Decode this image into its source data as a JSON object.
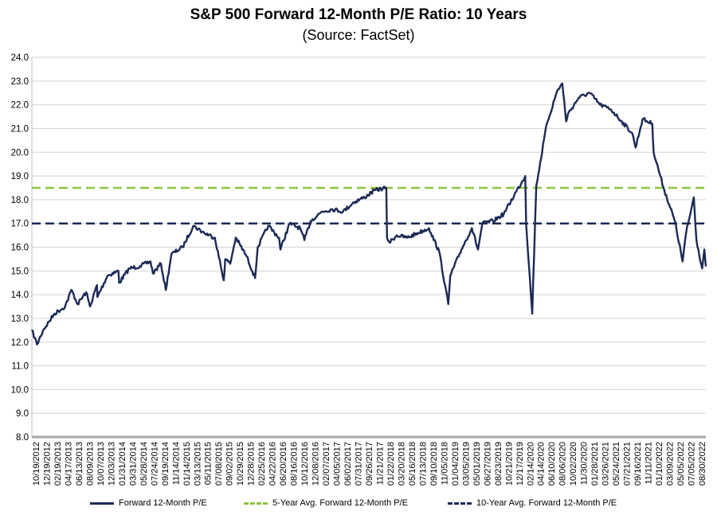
{
  "chart_data": {
    "type": "line",
    "title": "S&P 500 Forward 12-Month P/E Ratio: 10 Years",
    "subtitle": "(Source: FactSet)",
    "xlabel": "",
    "ylabel": "",
    "ylim": [
      8.0,
      24.0
    ],
    "y_ticks": [
      "8.0",
      "9.0",
      "10.0",
      "11.0",
      "12.0",
      "13.0",
      "14.0",
      "15.0",
      "16.0",
      "17.0",
      "18.0",
      "19.0",
      "20.0",
      "21.0",
      "22.0",
      "23.0",
      "24.0"
    ],
    "x_ticks": [
      "10/19/2012",
      "12/19/2012",
      "02/19/2013",
      "04/17/2013",
      "06/13/2013",
      "08/09/2013",
      "10/07/2013",
      "12/03/2013",
      "01/31/2014",
      "03/31/2014",
      "05/28/2014",
      "07/24/2014",
      "09/19/2014",
      "11/14/2014",
      "01/14/2015",
      "03/13/2015",
      "05/11/2015",
      "07/08/2015",
      "09/02/2015",
      "10/29/2015",
      "12/28/2015",
      "02/25/2016",
      "04/22/2016",
      "06/20/2016",
      "08/16/2016",
      "10/12/2016",
      "12/08/2016",
      "02/07/2017",
      "04/05/2017",
      "06/02/2017",
      "07/31/2017",
      "09/26/2017",
      "11/21/2017",
      "01/22/2018",
      "03/20/2018",
      "05/16/2018",
      "07/13/2018",
      "09/10/2018",
      "11/05/2018",
      "01/04/2019",
      "03/05/2019",
      "05/01/2019",
      "06/27/2019",
      "08/23/2019",
      "10/21/2019",
      "12/17/2019",
      "02/14/2020",
      "04/14/2020",
      "06/10/2020",
      "08/06/2020",
      "10/02/2020",
      "11/30/2020",
      "01/28/2021",
      "03/26/2021",
      "05/24/2021",
      "07/21/2021",
      "09/16/2021",
      "11/11/2021",
      "01/10/2022",
      "03/09/2022",
      "05/05/2022",
      "07/05/2022",
      "08/30/2022"
    ],
    "grid": true,
    "legend": "bottom",
    "series": [
      {
        "name": "Forward 12-Month P/E",
        "color": "#1b2a56",
        "style": "solid",
        "x": [
          "10/19/2012",
          "11/16/2012",
          "12/19/2012",
          "02/19/2013",
          "04/17/2013",
          "05/22/2013",
          "06/24/2013",
          "08/09/2013",
          "08/30/2013",
          "10/07/2013",
          "10/09/2013",
          "12/03/2013",
          "01/31/2014",
          "02/04/2014",
          "03/31/2014",
          "05/28/2014",
          "07/24/2014",
          "08/06/2014",
          "09/19/2014",
          "10/15/2014",
          "11/14/2014",
          "01/14/2015",
          "03/13/2015",
          "05/11/2015",
          "07/08/2015",
          "08/25/2015",
          "09/02/2015",
          "09/29/2015",
          "10/29/2015",
          "12/28/2015",
          "02/11/2016",
          "02/25/2016",
          "04/22/2016",
          "06/20/2016",
          "06/27/2016",
          "08/16/2016",
          "10/12/2016",
          "11/04/2016",
          "12/08/2016",
          "02/07/2017",
          "04/05/2017",
          "06/02/2017",
          "07/31/2017",
          "09/26/2017",
          "11/21/2017",
          "01/22/2018",
          "01/26/2018",
          "02/08/2018",
          "03/20/2018",
          "05/16/2018",
          "07/13/2018",
          "09/10/2018",
          "09/21/2018",
          "11/05/2018",
          "12/24/2018",
          "01/04/2019",
          "03/05/2019",
          "05/01/2019",
          "06/03/2019",
          "06/27/2019",
          "08/23/2019",
          "10/21/2019",
          "12/17/2019",
          "02/14/2020",
          "02/19/2020",
          "03/23/2020",
          "04/14/2020",
          "06/10/2020",
          "08/06/2020",
          "09/02/2020",
          "09/23/2020",
          "10/02/2020",
          "11/30/2020",
          "01/28/2021",
          "03/26/2021",
          "05/24/2021",
          "07/21/2021",
          "09/16/2021",
          "10/04/2021",
          "11/11/2021",
          "01/03/2022",
          "01/10/2022",
          "03/09/2022",
          "05/05/2022",
          "06/16/2022",
          "07/05/2022",
          "08/16/2022",
          "08/30/2022",
          "09/30/2022",
          "10/12/2022",
          "10/20/2022"
        ],
        "values": [
          12.5,
          11.9,
          12.5,
          13.2,
          13.5,
          14.2,
          13.6,
          14.1,
          13.5,
          14.4,
          13.9,
          14.8,
          15.0,
          14.5,
          15.1,
          15.2,
          15.4,
          14.9,
          15.3,
          14.2,
          15.7,
          16.0,
          16.9,
          16.6,
          16.4,
          14.6,
          15.5,
          15.3,
          16.4,
          15.6,
          14.7,
          16.0,
          16.9,
          16.4,
          15.9,
          17.0,
          16.8,
          16.3,
          17.1,
          17.5,
          17.6,
          17.5,
          17.9,
          18.1,
          18.4,
          18.5,
          16.4,
          16.2,
          16.5,
          16.4,
          16.6,
          16.8,
          16.6,
          15.8,
          13.6,
          14.8,
          15.9,
          16.8,
          15.9,
          17.0,
          17.1,
          17.4,
          18.2,
          19.0,
          17.0,
          13.2,
          18.6,
          21.2,
          22.6,
          22.9,
          21.3,
          21.6,
          22.3,
          22.5,
          22.0,
          21.8,
          21.3,
          20.8,
          20.2,
          21.4,
          21.2,
          20.0,
          18.4,
          17.1,
          15.4,
          16.6,
          18.1,
          16.3,
          15.1,
          15.9,
          15.2
        ]
      },
      {
        "name": "5-Year Avg. Forward 12-Month P/E",
        "color": "#8dc63f",
        "style": "dashed",
        "value": 18.5
      },
      {
        "name": "10-Year Avg. Forward 12-Month P/E",
        "color": "#1b2a56",
        "style": "dashed",
        "value": 17.0
      }
    ]
  }
}
